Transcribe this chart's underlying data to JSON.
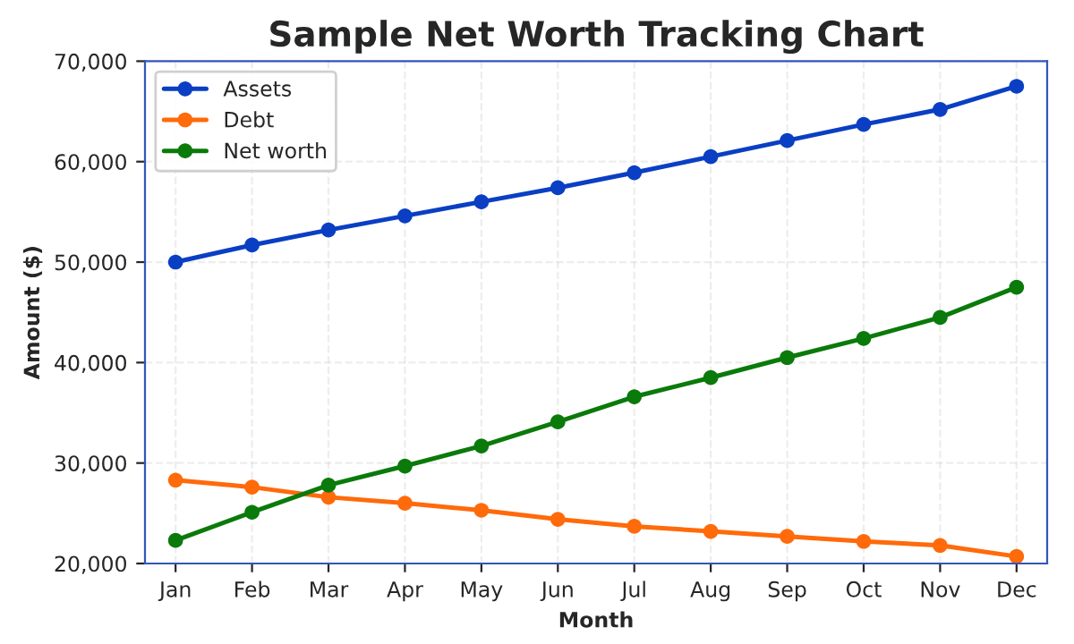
{
  "chart_data": {
    "type": "line",
    "title": "Sample Net Worth Tracking Chart",
    "xlabel": "Month",
    "ylabel": "Amount ($)",
    "categories": [
      "Jan",
      "Feb",
      "Mar",
      "Apr",
      "May",
      "Jun",
      "Jul",
      "Aug",
      "Sep",
      "Oct",
      "Nov",
      "Dec"
    ],
    "series": [
      {
        "name": "Assets",
        "color": "#0a3fc4",
        "values": [
          50000,
          51700,
          53200,
          54600,
          56000,
          57400,
          58900,
          60500,
          62100,
          63700,
          65200,
          67500
        ]
      },
      {
        "name": "Debt",
        "color": "#ff6a0a",
        "values": [
          28300,
          27600,
          26600,
          26000,
          25300,
          24400,
          23700,
          23200,
          22700,
          22200,
          21800,
          20700
        ]
      },
      {
        "name": "Net worth",
        "color": "#0a7a0a",
        "values": [
          22300,
          25100,
          27800,
          29700,
          31700,
          34100,
          36600,
          38500,
          40500,
          42400,
          44500,
          47500
        ]
      }
    ],
    "ylim": [
      20000,
      70000
    ],
    "yticks": [
      {
        "value": 20000,
        "label": "20,000"
      },
      {
        "value": 30000,
        "label": "30,000"
      },
      {
        "value": 40000,
        "label": "40,000"
      },
      {
        "value": 50000,
        "label": "50,000"
      },
      {
        "value": 60000,
        "label": "60,000"
      },
      {
        "value": 70000,
        "label": "70,000"
      }
    ],
    "grid": true,
    "legend": "top left",
    "marker": "circle",
    "line_style": "solid"
  }
}
